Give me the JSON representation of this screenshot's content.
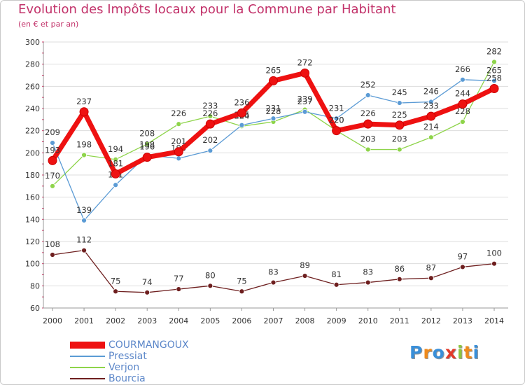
{
  "title": "Evolution des Impôts locaux pour la Commune par Habitant",
  "subtitle": "(en € et par an)",
  "logo": "Proxiti",
  "chart_data": {
    "type": "line",
    "title": "Evolution des Impôts locaux pour la Commune par Habitant",
    "subtitle": "(en € et par an)",
    "x": [
      "2000",
      "2001",
      "2002",
      "2003",
      "2004",
      "2005",
      "2006",
      "2007",
      "2008",
      "2009",
      "2010",
      "2011",
      "2012",
      "2013",
      "2014"
    ],
    "ylim": [
      60,
      300
    ],
    "yticks": [
      60,
      80,
      100,
      120,
      140,
      160,
      180,
      200,
      220,
      240,
      260,
      280,
      300
    ],
    "grid": "horizontal",
    "legend": "bottom-left",
    "series": [
      {
        "name": "Verjon",
        "color": "#8ed44a",
        "values": [
          170,
          198,
          194,
          208,
          226,
          233,
          224,
          228,
          239,
          220,
          203,
          203,
          214,
          228,
          282
        ],
        "labels": [
          "170",
          "198",
          "194",
          "208",
          "226",
          "233",
          "224",
          "228",
          "239",
          "220",
          "203",
          "203",
          "214",
          "228",
          "282"
        ]
      },
      {
        "name": "Pressiat",
        "color": "#5b9bd5",
        "values": [
          209,
          139,
          171,
          198,
          195,
          202,
          225,
          231,
          237,
          231,
          252,
          245,
          246,
          266,
          265
        ],
        "labels": [
          "209",
          "139",
          "171",
          "198",
          "195",
          "202",
          "225",
          "231",
          "237",
          "231",
          "252",
          "245",
          "246",
          "266",
          "265"
        ]
      },
      {
        "name": "Bourcia",
        "color": "#6e1f1f",
        "values": [
          108,
          112,
          75,
          74,
          77,
          80,
          75,
          83,
          89,
          81,
          83,
          86,
          87,
          97,
          100
        ],
        "labels": [
          "108",
          "112",
          "75",
          "74",
          "77",
          "80",
          "75",
          "83",
          "89",
          "81",
          "83",
          "86",
          "87",
          "97",
          "100"
        ]
      },
      {
        "name": "COURMANGOUX",
        "color": "#ee1111",
        "values": [
          193,
          237,
          181,
          196,
          201,
          226,
          236,
          265,
          272,
          220,
          226,
          225,
          233,
          244,
          258
        ],
        "labels": [
          "193",
          "237",
          "181",
          "196",
          "201",
          "226",
          "236",
          "265",
          "272",
          "220",
          "226",
          "225",
          "233",
          "244",
          "258"
        ]
      }
    ]
  }
}
